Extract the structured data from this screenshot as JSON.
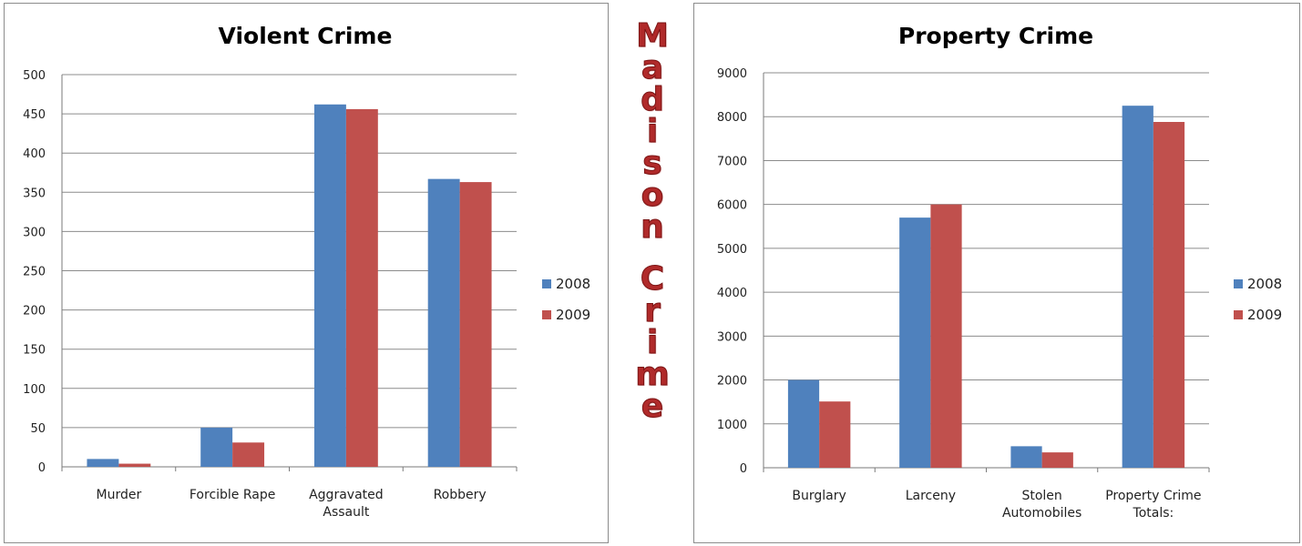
{
  "header": {
    "title": "Madison Crime"
  },
  "colors": {
    "series_2008": "#4f81bd",
    "series_2009": "#c0504d",
    "grid": "#8c8c8c",
    "header_text": "#b02a2a"
  },
  "chart_data": [
    {
      "type": "bar",
      "title": "Violent Crime",
      "categories": [
        [
          "Murder"
        ],
        [
          "Forcible Rape"
        ],
        [
          "Aggravated",
          "Assault"
        ],
        [
          "Robbery"
        ]
      ],
      "series": [
        {
          "name": "2008",
          "values": [
            10,
            50,
            462,
            367
          ]
        },
        {
          "name": "2009",
          "values": [
            4,
            31,
            456,
            363
          ]
        }
      ],
      "ylim": [
        0,
        500
      ],
      "yticks": [
        "0",
        "50",
        "100",
        "150",
        "200",
        "250",
        "300",
        "350",
        "400",
        "450",
        "500"
      ],
      "grid": true,
      "legend": "right"
    },
    {
      "type": "bar",
      "title": "Property Crime",
      "categories": [
        [
          "Burglary"
        ],
        [
          "Larceny"
        ],
        [
          "Stolen",
          "Automobiles"
        ],
        [
          "Property Crime",
          "Totals:"
        ]
      ],
      "series": [
        {
          "name": "2008",
          "values": [
            2000,
            5700,
            490,
            8250
          ]
        },
        {
          "name": "2009",
          "values": [
            1510,
            6000,
            350,
            7880
          ]
        }
      ],
      "ylim": [
        0,
        9000
      ],
      "yticks": [
        "0",
        "1000",
        "2000",
        "3000",
        "4000",
        "5000",
        "6000",
        "7000",
        "8000",
        "9000"
      ],
      "grid": true,
      "legend": "right"
    }
  ]
}
